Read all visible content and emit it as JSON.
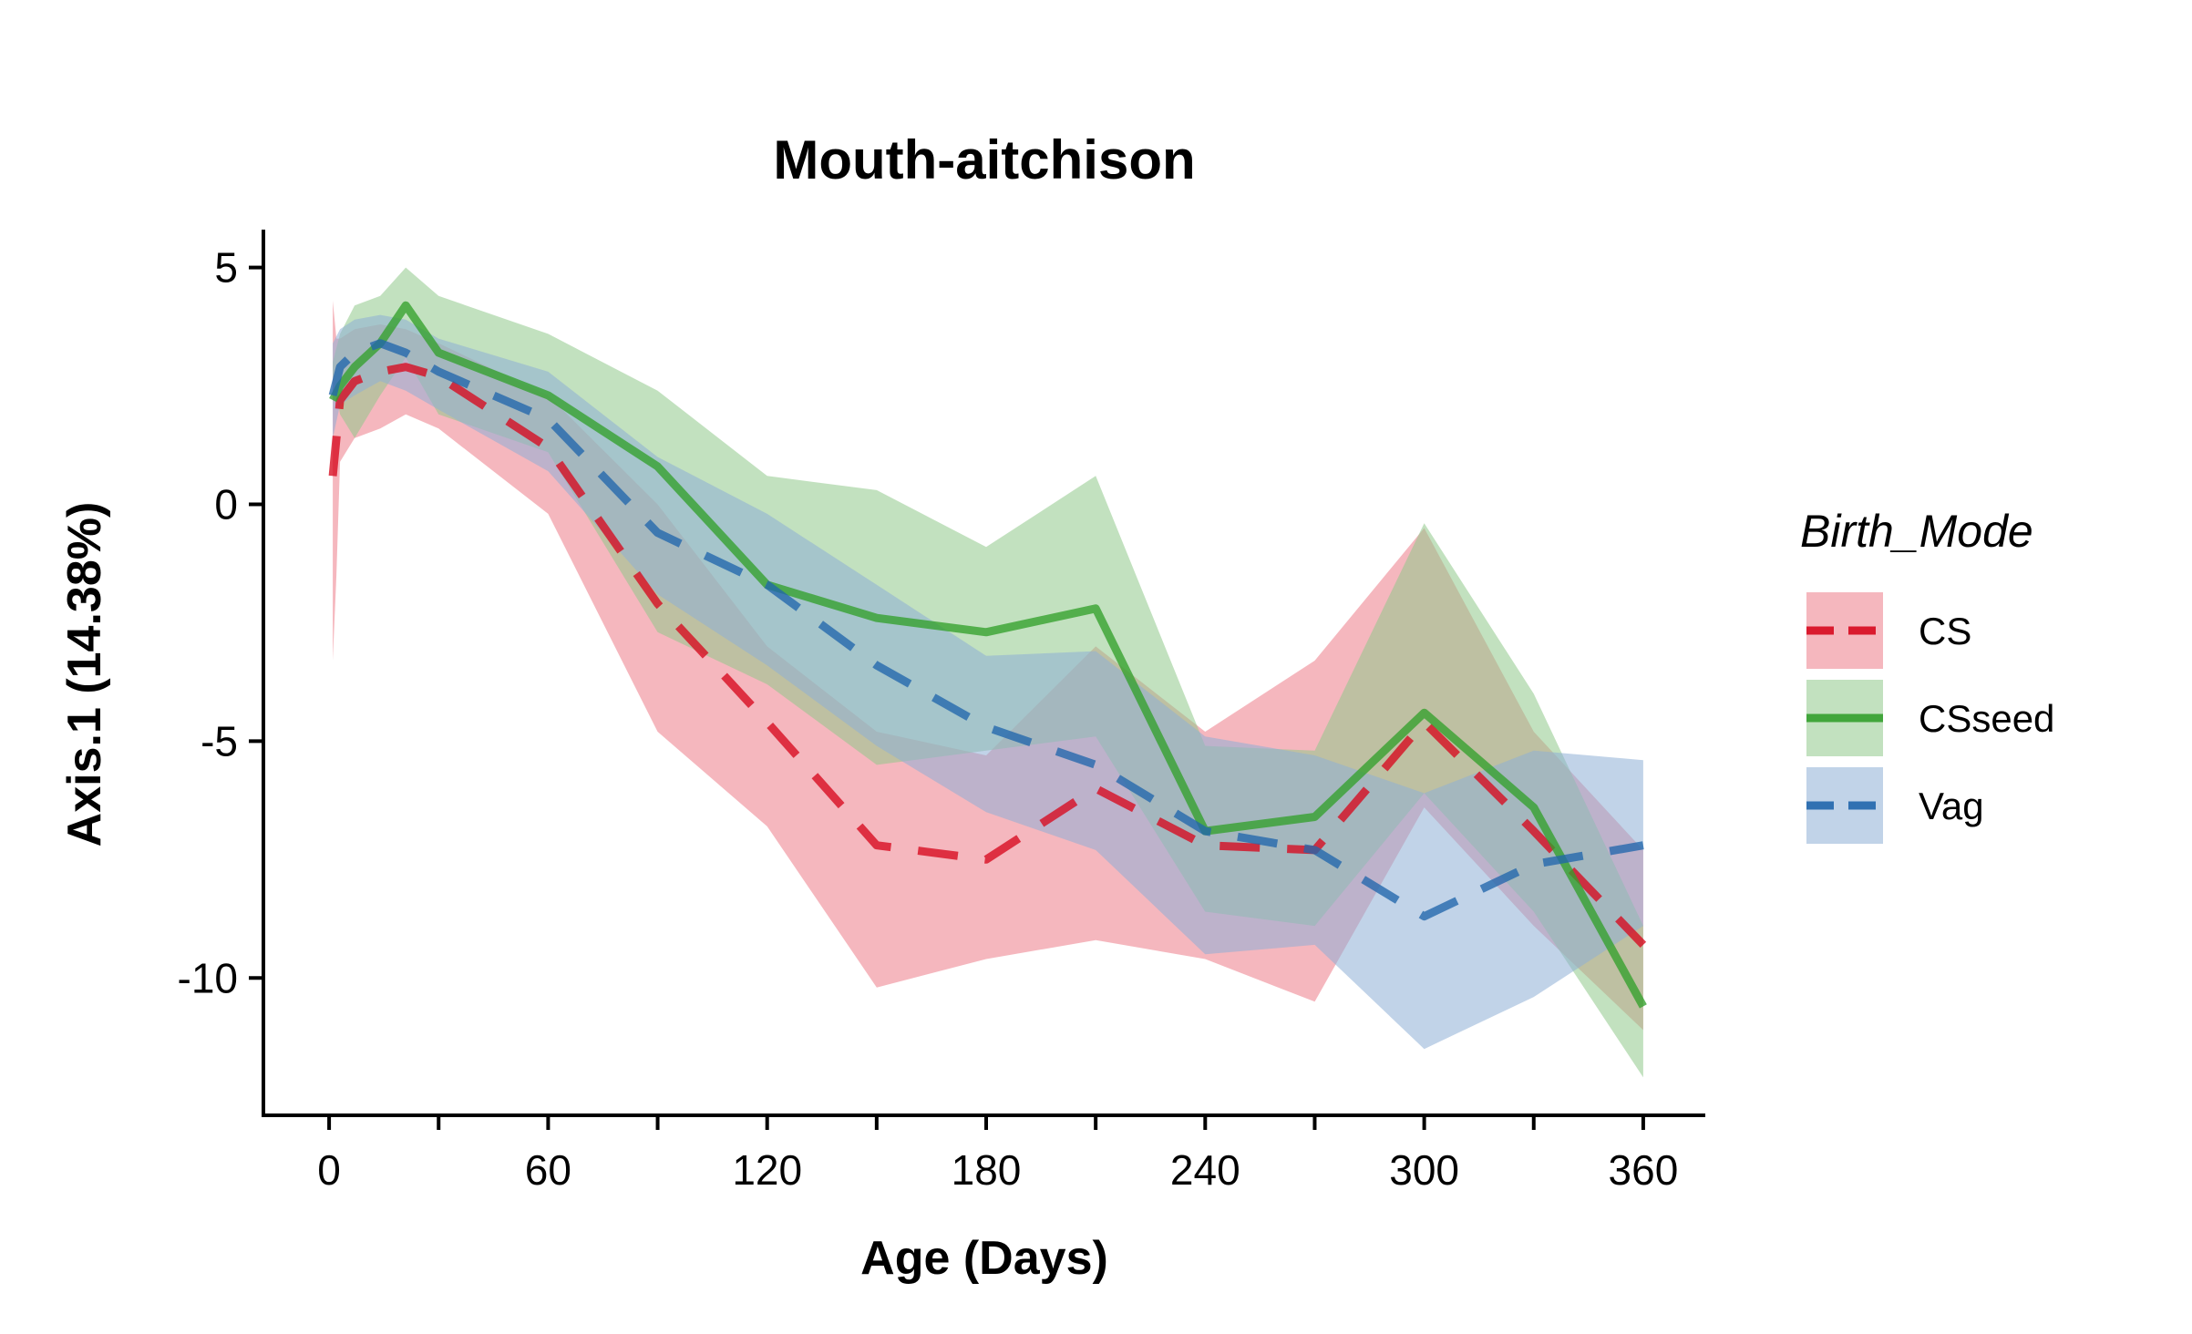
{
  "chart_data": {
    "type": "line",
    "title": "Mouth-aitchison",
    "xlabel": "Age (Days)",
    "ylabel": "Axis.1 (14.38%)",
    "xlim": [
      -18,
      377
    ],
    "ylim": [
      -12.9,
      5.8
    ],
    "x_ticks": [
      0,
      60,
      120,
      180,
      240,
      300,
      360
    ],
    "x_minor_ticks": [
      30,
      90,
      150,
      210,
      270,
      330
    ],
    "y_ticks": [
      5,
      0,
      -5,
      -10
    ],
    "y_tick_labels": [
      "5",
      "0",
      "-5",
      "-10"
    ],
    "legend": {
      "title": "Birth_Mode",
      "position": "right"
    },
    "series": [
      {
        "name": "CS",
        "color": "#d7091e",
        "fill": "#ec7b88",
        "line_style": "dashed",
        "x": [
          1,
          2,
          3,
          7,
          14,
          21,
          30,
          60,
          90,
          120,
          150,
          180,
          210,
          240,
          270,
          300,
          330,
          360
        ],
        "y": [
          0.6,
          1.4,
          2.2,
          2.6,
          2.8,
          2.9,
          2.7,
          1.2,
          -2.1,
          -4.6,
          -7.2,
          -7.5,
          -6.0,
          -7.2,
          -7.3,
          -4.6,
          -6.9,
          -9.3
        ],
        "lower": [
          -3.3,
          -1.5,
          0.9,
          1.4,
          1.6,
          1.9,
          1.6,
          -0.2,
          -4.8,
          -6.8,
          -10.2,
          -9.6,
          -9.2,
          -9.6,
          -10.5,
          -6.4,
          -8.9,
          -11.1
        ],
        "upper": [
          4.3,
          3.5,
          3.5,
          3.7,
          3.8,
          3.7,
          3.4,
          2.3,
          0.0,
          -3.0,
          -4.8,
          -5.3,
          -3.0,
          -4.8,
          -3.3,
          -0.5,
          -4.8,
          -7.3
        ]
      },
      {
        "name": "CSseed",
        "color": "#33a02c",
        "fill": "#8fc98a",
        "line_style": "solid",
        "x": [
          1,
          3,
          7,
          14,
          21,
          30,
          60,
          90,
          120,
          150,
          180,
          210,
          240,
          270,
          300,
          330,
          360
        ],
        "y": [
          2.2,
          2.5,
          2.9,
          3.4,
          4.2,
          3.2,
          2.3,
          0.8,
          -1.7,
          -2.4,
          -2.7,
          -2.2,
          -6.9,
          -6.6,
          -4.4,
          -6.4,
          -10.6
        ],
        "lower": [
          2.7,
          1.9,
          1.4,
          2.3,
          3.1,
          1.9,
          1.1,
          -2.7,
          -3.8,
          -5.5,
          -5.2,
          -4.9,
          -8.6,
          -8.9,
          -6.1,
          -8.6,
          -12.1
        ],
        "upper": [
          3.0,
          3.6,
          4.2,
          4.4,
          5.0,
          4.4,
          3.6,
          2.4,
          0.6,
          0.3,
          -0.9,
          0.6,
          -5.1,
          -5.2,
          -0.4,
          -4.0,
          -8.9
        ]
      },
      {
        "name": "Vag",
        "color": "#2166ac",
        "fill": "#8eaed6",
        "line_style": "dashed",
        "x": [
          1,
          3,
          7,
          14,
          21,
          30,
          60,
          90,
          120,
          150,
          180,
          210,
          240,
          270,
          300,
          330,
          360
        ],
        "y": [
          2.3,
          2.9,
          3.2,
          3.4,
          3.2,
          2.8,
          1.8,
          -0.6,
          -1.7,
          -3.4,
          -4.7,
          -5.5,
          -6.9,
          -7.3,
          -8.7,
          -7.6,
          -7.2
        ],
        "lower": [
          1.4,
          2.1,
          2.3,
          2.6,
          2.4,
          2.0,
          0.7,
          -1.9,
          -3.4,
          -5.1,
          -6.5,
          -7.3,
          -9.5,
          -9.3,
          -11.5,
          -10.4,
          -8.9
        ],
        "upper": [
          3.4,
          3.7,
          3.9,
          4.0,
          3.9,
          3.5,
          2.8,
          1.0,
          -0.2,
          -1.7,
          -3.2,
          -3.1,
          -4.9,
          -5.3,
          -6.1,
          -5.2,
          -5.4
        ]
      }
    ]
  }
}
